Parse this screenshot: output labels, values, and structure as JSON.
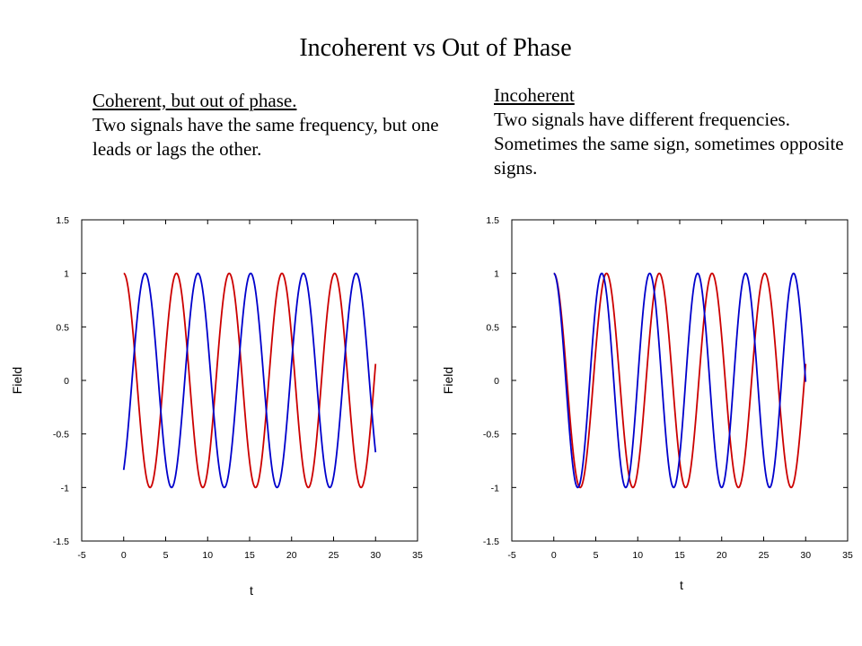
{
  "slide": {
    "title": "Incoherent vs Out of Phase",
    "left_caption": {
      "heading": "Coherent, but out of phase.",
      "text": "Two signals have the same frequency, but one leads or lags the other."
    },
    "right_caption": {
      "heading": "Incoherent",
      "text": "Two signals have different frequencies. Sometimes the same sign, sometimes opposite signs."
    }
  },
  "chart_data": [
    {
      "type": "line",
      "xlabel": "t",
      "ylabel": "Field",
      "xlim": [
        -5,
        35
      ],
      "ylim": [
        -1.5,
        1.5
      ],
      "xticks": [
        -5,
        0,
        5,
        10,
        15,
        20,
        25,
        30,
        35
      ],
      "yticks": [
        -1.5,
        -1,
        -0.5,
        0,
        0.5,
        1,
        1.5
      ],
      "xtick_labels": [
        "-5",
        "0",
        "5",
        "10",
        "15",
        "20",
        "25",
        "30",
        "35"
      ],
      "ytick_labels": [
        "-1.5",
        "-1",
        "-0.5",
        "0",
        "0.5",
        "1",
        "1.5"
      ],
      "grid": false,
      "series": [
        {
          "color": "#cc0000",
          "function": "cos",
          "amplitude": 1,
          "angular_frequency": 1.0,
          "phase": 0,
          "x_range": [
            0,
            30
          ]
        },
        {
          "color": "#0000cc",
          "function": "cos",
          "amplitude": 1,
          "angular_frequency": 1.0,
          "phase": -2.56,
          "x_range": [
            0,
            30
          ]
        }
      ]
    },
    {
      "type": "line",
      "xlabel": "t",
      "ylabel": "Field",
      "xlim": [
        -5,
        35
      ],
      "ylim": [
        -1.5,
        1.5
      ],
      "xticks": [
        -5,
        0,
        5,
        10,
        15,
        20,
        25,
        30,
        35
      ],
      "yticks": [
        -1.5,
        -1,
        -0.5,
        0,
        0.5,
        1,
        1.5
      ],
      "xtick_labels": [
        "-5",
        "0",
        "5",
        "10",
        "15",
        "20",
        "25",
        "30",
        "35"
      ],
      "ytick_labels": [
        "-1.5",
        "-1",
        "-0.5",
        "0",
        "0.5",
        "1",
        "1.5"
      ],
      "grid": false,
      "series": [
        {
          "color": "#cc0000",
          "function": "cos",
          "amplitude": 1,
          "angular_frequency": 1.0,
          "phase": 0,
          "x_range": [
            0,
            30
          ]
        },
        {
          "color": "#0000cc",
          "function": "cos",
          "amplitude": 1,
          "angular_frequency": 1.1,
          "phase": 0,
          "x_range": [
            0,
            30
          ]
        }
      ]
    }
  ]
}
